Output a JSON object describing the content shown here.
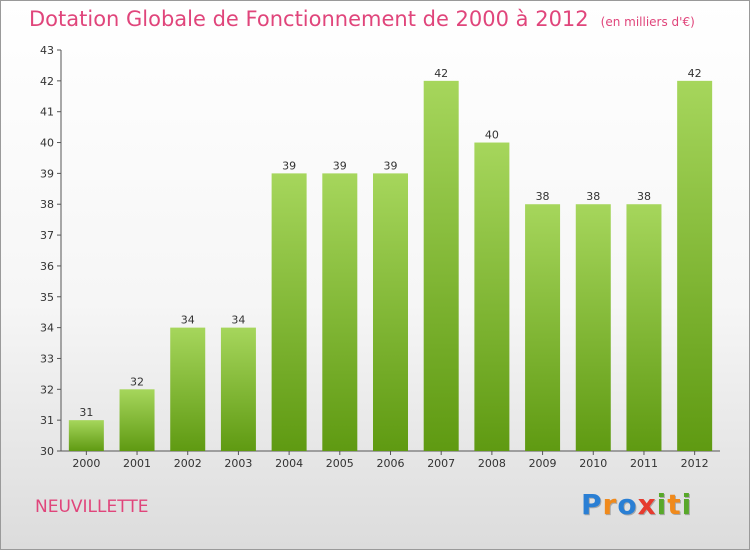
{
  "title": "Dotation Globale de Fonctionnement de 2000 à 2012",
  "units": "(en milliers d'€)",
  "town": "NEUVILLETTE",
  "logo": {
    "letters": [
      "P",
      "r",
      "o",
      "x",
      "i",
      "t",
      "i"
    ],
    "colors": [
      "#2a7fd4",
      "#f08a1c",
      "#2a7fd4",
      "#e63b2e",
      "#58a82a",
      "#f08a1c",
      "#58a82a"
    ]
  },
  "colors": {
    "bar_top": "#a6d65c",
    "bar_bottom": "#5f9a12",
    "title": "#e0457b"
  },
  "chart_data": {
    "type": "bar",
    "categories": [
      "2000",
      "2001",
      "2002",
      "2003",
      "2004",
      "2005",
      "2006",
      "2007",
      "2008",
      "2009",
      "2010",
      "2011",
      "2012"
    ],
    "values": [
      31,
      32,
      34,
      34,
      39,
      39,
      39,
      42,
      40,
      38,
      38,
      38,
      42
    ],
    "data_labels": [
      "31",
      "32",
      "34",
      "34",
      "39",
      "39",
      "39",
      "42",
      "40",
      "38",
      "38",
      "38",
      "42"
    ],
    "ylim": [
      30,
      43
    ],
    "yticks": [
      30,
      31,
      32,
      33,
      34,
      35,
      36,
      37,
      38,
      39,
      40,
      41,
      42,
      43
    ],
    "ytick_labels": [
      "30",
      "31",
      "32",
      "33",
      "34",
      "35",
      "36",
      "37",
      "38",
      "39",
      "40",
      "41",
      "42",
      "43"
    ],
    "grid": false,
    "legend": "none"
  }
}
